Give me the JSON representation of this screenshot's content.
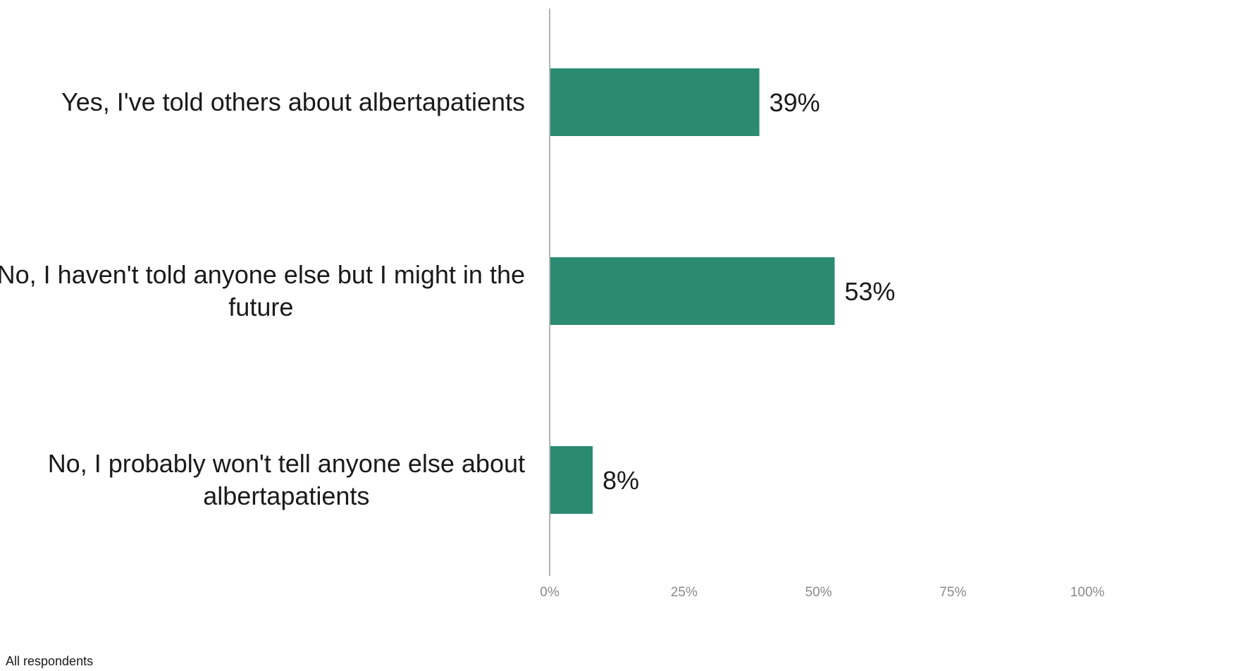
{
  "chart_data": {
    "type": "bar",
    "orientation": "horizontal",
    "categories": [
      "Yes, I've told others about albertapatients",
      "No, I haven't told anyone else but I might in the future",
      "No, I probably won't tell anyone else about albertapatients"
    ],
    "values": [
      39,
      53,
      8
    ],
    "value_labels": [
      "39%",
      "53%",
      "8%"
    ],
    "xlim": [
      0,
      100
    ],
    "x_ticks": [
      0,
      25,
      50,
      75,
      100
    ],
    "x_tick_labels": [
      "0%",
      "25%",
      "50%",
      "75%",
      "100%"
    ],
    "grid": false,
    "bar_color": "#2b8a72"
  },
  "footnote": "All respondents"
}
